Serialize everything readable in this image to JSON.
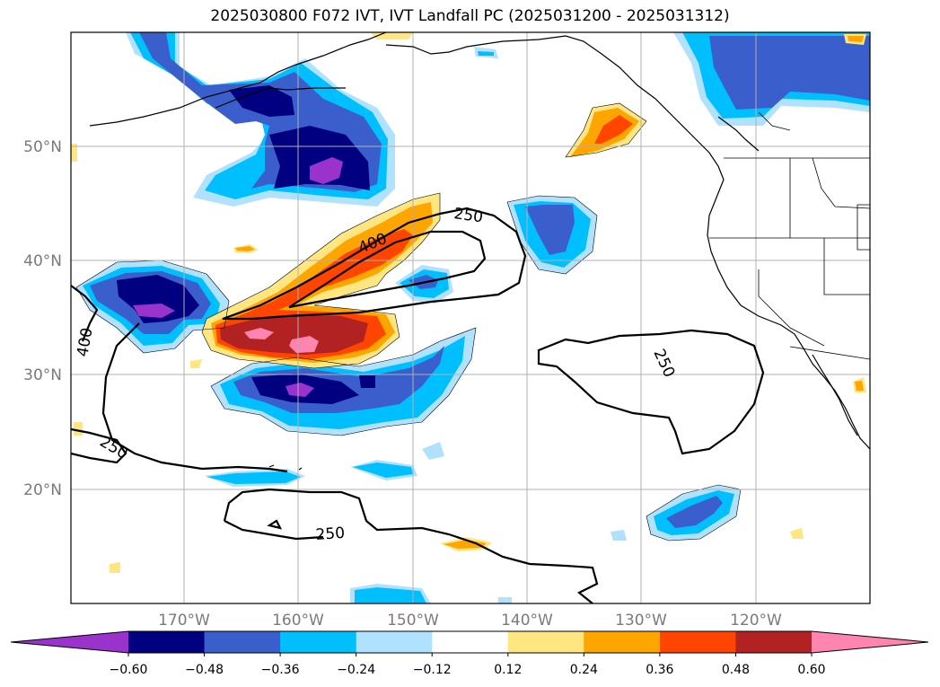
{
  "title": "2025030800 F072 IVT, IVT Landfall PC (2025031200 - 2025031312)",
  "lat_labels": [
    "20°N",
    "30°N",
    "40°N",
    "50°N"
  ],
  "lon_labels": [
    "170°W",
    "160°W",
    "150°W",
    "140°W",
    "130°W",
    "120°W"
  ],
  "colorbar": {
    "tick_labels": [
      "−0.60",
      "−0.48",
      "−0.36",
      "−0.24",
      "−0.12",
      "0.12",
      "0.24",
      "0.36",
      "0.48",
      "0.60"
    ],
    "levels": [
      -0.6,
      -0.48,
      -0.36,
      -0.24,
      -0.12,
      0.12,
      0.24,
      0.36,
      0.48,
      0.6
    ],
    "colors": [
      "#9933cc",
      "#000080",
      "#3a5fcd",
      "#00bfff",
      "#b0e2ff",
      "#ffffff",
      "#ffe680",
      "#ffa500",
      "#ff4500",
      "#b22222",
      "#ff85b0"
    ]
  },
  "contour_labels": [
    "250",
    "400",
    "400",
    "250",
    "250",
    "250"
  ]
}
